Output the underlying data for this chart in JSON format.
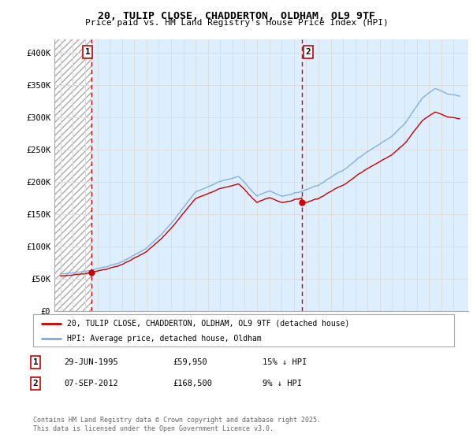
{
  "title_line1": "20, TULIP CLOSE, CHADDERTON, OLDHAM, OL9 9TF",
  "title_line2": "Price paid vs. HM Land Registry's House Price Index (HPI)",
  "legend_label1": "20, TULIP CLOSE, CHADDERTON, OLDHAM, OL9 9TF (detached house)",
  "legend_label2": "HPI: Average price, detached house, Oldham",
  "annotation1": {
    "label": "1",
    "date": "29-JUN-1995",
    "price": "£59,950",
    "hpi": "15% ↓ HPI"
  },
  "annotation2": {
    "label": "2",
    "date": "07-SEP-2012",
    "price": "£168,500",
    "hpi": "9% ↓ HPI"
  },
  "footer": "Contains HM Land Registry data © Crown copyright and database right 2025.\nThis data is licensed under the Open Government Licence v3.0.",
  "sale_color": "#cc0000",
  "hpi_color": "#7aaadd",
  "hatch_color": "#cccccc",
  "grid_color": "#dddddd",
  "annotation_line_color": "#cc0000",
  "ylim": [
    0,
    420000
  ],
  "yticks": [
    0,
    50000,
    100000,
    150000,
    200000,
    250000,
    300000,
    350000,
    400000
  ],
  "ytick_labels": [
    "£0",
    "£50K",
    "£100K",
    "£150K",
    "£200K",
    "£250K",
    "£300K",
    "£350K",
    "£400K"
  ],
  "sale1_x": 1995.49,
  "sale1_y": 59950,
  "sale2_x": 2012.68,
  "sale2_y": 168500,
  "xlim": [
    1992.5,
    2026.2
  ]
}
